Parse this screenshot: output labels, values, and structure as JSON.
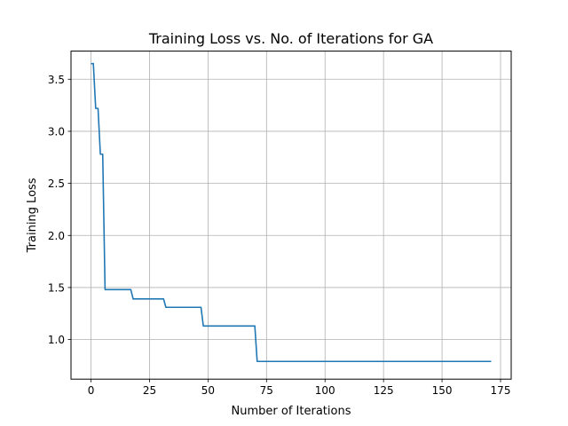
{
  "chart_data": {
    "type": "line",
    "title": "Training Loss vs. No. of Iterations for GA",
    "xlabel": "Number of Iterations",
    "ylabel": "Training Loss",
    "xlim": [
      -8.55,
      179.55
    ],
    "ylim": [
      0.62,
      3.77
    ],
    "xticks": [
      0,
      25,
      50,
      75,
      100,
      125,
      150,
      175
    ],
    "xtick_labels": [
      "0",
      "25",
      "50",
      "75",
      "100",
      "125",
      "150",
      "175"
    ],
    "yticks": [
      1.0,
      1.5,
      2.0,
      2.5,
      3.0,
      3.5
    ],
    "ytick_labels": [
      "1.0",
      "1.5",
      "2.0",
      "2.5",
      "3.0",
      "3.5"
    ],
    "grid": true,
    "series": [
      {
        "color": "#1f77b4",
        "x": [
          0,
          1,
          2,
          3,
          4,
          5,
          6,
          7,
          17,
          18,
          31,
          32,
          47,
          48,
          70,
          71,
          171
        ],
        "y": [
          3.65,
          3.65,
          3.22,
          3.22,
          2.78,
          2.78,
          1.48,
          1.48,
          1.48,
          1.39,
          1.39,
          1.31,
          1.31,
          1.13,
          1.13,
          0.79,
          0.79
        ]
      }
    ]
  }
}
